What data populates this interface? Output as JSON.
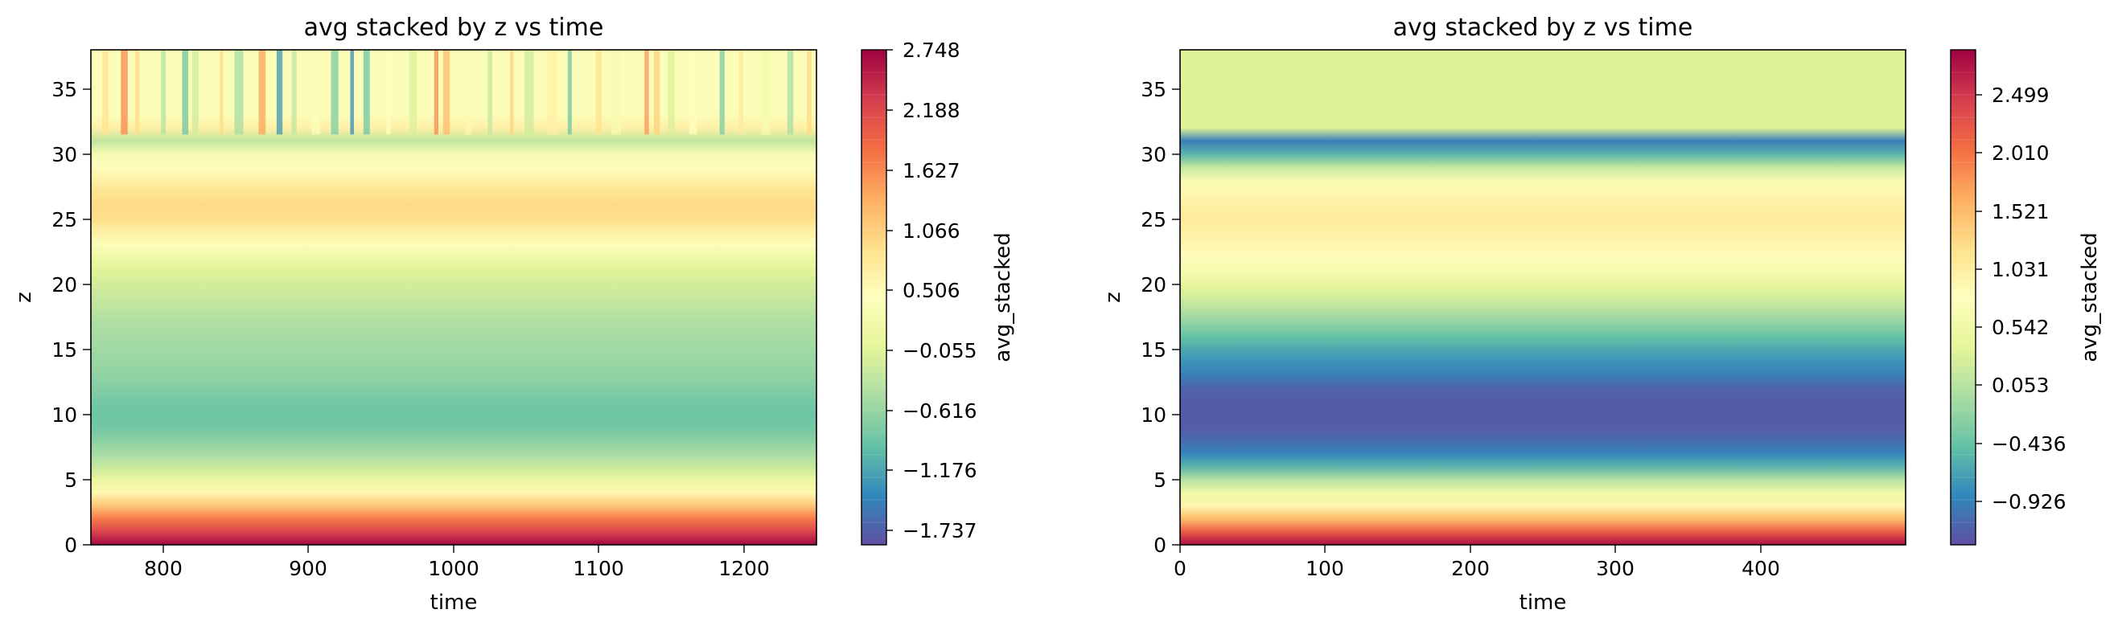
{
  "colormap": [
    "#5e4fa2",
    "#3288bd",
    "#66c2a5",
    "#abdda4",
    "#e6f598",
    "#ffffbf",
    "#fee08b",
    "#fdae61",
    "#f46d43",
    "#d53e4f",
    "#9e0142"
  ],
  "chart_data": [
    {
      "type": "heatmap",
      "title": "avg stacked by z vs time",
      "xlabel": "time",
      "ylabel": "z",
      "xlim": [
        750,
        1250
      ],
      "ylim": [
        0,
        38
      ],
      "xticks": [
        "800",
        "900",
        "1000",
        "1100",
        "1200"
      ],
      "yticks": [
        "0",
        "5",
        "10",
        "15",
        "20",
        "25",
        "30",
        "35"
      ],
      "colorbar": {
        "label": "avg_stacked",
        "min": -2.0,
        "max": 2.748,
        "ticks": [
          "2.748",
          "2.188",
          "1.627",
          "1.066",
          "0.506",
          "−0.055",
          "−0.616",
          "−1.176",
          "−1.737"
        ]
      },
      "profile": {
        "z": [
          0,
          1,
          2,
          3,
          4,
          5,
          6,
          7,
          8,
          9,
          10,
          11,
          12,
          13,
          14,
          15,
          16,
          17,
          18,
          19,
          20,
          21,
          22,
          23,
          24,
          25,
          26,
          27,
          28,
          29,
          30,
          31,
          32,
          33,
          34,
          35,
          36,
          37,
          38
        ],
        "value": [
          2.7,
          2.2,
          1.7,
          1.1,
          0.5,
          0.0,
          -0.35,
          -0.6,
          -0.8,
          -0.95,
          -1.0,
          -0.95,
          -0.85,
          -0.75,
          -0.7,
          -0.65,
          -0.6,
          -0.55,
          -0.45,
          -0.35,
          -0.25,
          -0.15,
          0.05,
          0.3,
          0.6,
          0.85,
          0.9,
          0.8,
          0.6,
          0.4,
          0.2,
          -0.4,
          0.6,
          0.3,
          0.3,
          0.3,
          0.3,
          0.3,
          0.3
        ]
      }
    },
    {
      "type": "heatmap",
      "title": "avg stacked by z vs time",
      "xlabel": "time",
      "ylabel": "z",
      "xlim": [
        0,
        500
      ],
      "ylim": [
        0,
        38
      ],
      "xticks": [
        "0",
        "100",
        "200",
        "300",
        "400"
      ],
      "yticks": [
        "0",
        "5",
        "10",
        "15",
        "20",
        "25",
        "30",
        "35"
      ],
      "colorbar": {
        "label": "avg_stacked",
        "min": -1.35,
        "max": 2.9,
        "ticks": [
          "2.499",
          "2.010",
          "1.521",
          "1.031",
          "0.542",
          "0.053",
          "−0.436",
          "−0.926"
        ]
      },
      "profile": {
        "z": [
          0,
          1,
          2,
          3,
          4,
          5,
          6,
          7,
          8,
          9,
          10,
          11,
          12,
          13,
          14,
          15,
          16,
          17,
          18,
          19,
          20,
          21,
          22,
          23,
          24,
          25,
          26,
          27,
          28,
          29,
          30,
          31,
          32,
          33,
          34,
          35,
          36,
          37,
          38
        ],
        "value": [
          2.8,
          2.2,
          1.5,
          0.9,
          0.5,
          0.0,
          -0.6,
          -0.95,
          -1.15,
          -1.25,
          -1.25,
          -1.25,
          -1.2,
          -1.0,
          -0.85,
          -0.7,
          -0.5,
          -0.25,
          0.0,
          0.2,
          0.4,
          0.6,
          0.8,
          0.9,
          1.0,
          1.05,
          1.0,
          0.9,
          0.6,
          0.1,
          -0.6,
          -1.0,
          0.3,
          0.3,
          0.3,
          0.3,
          0.3,
          0.3,
          0.3
        ]
      }
    }
  ]
}
